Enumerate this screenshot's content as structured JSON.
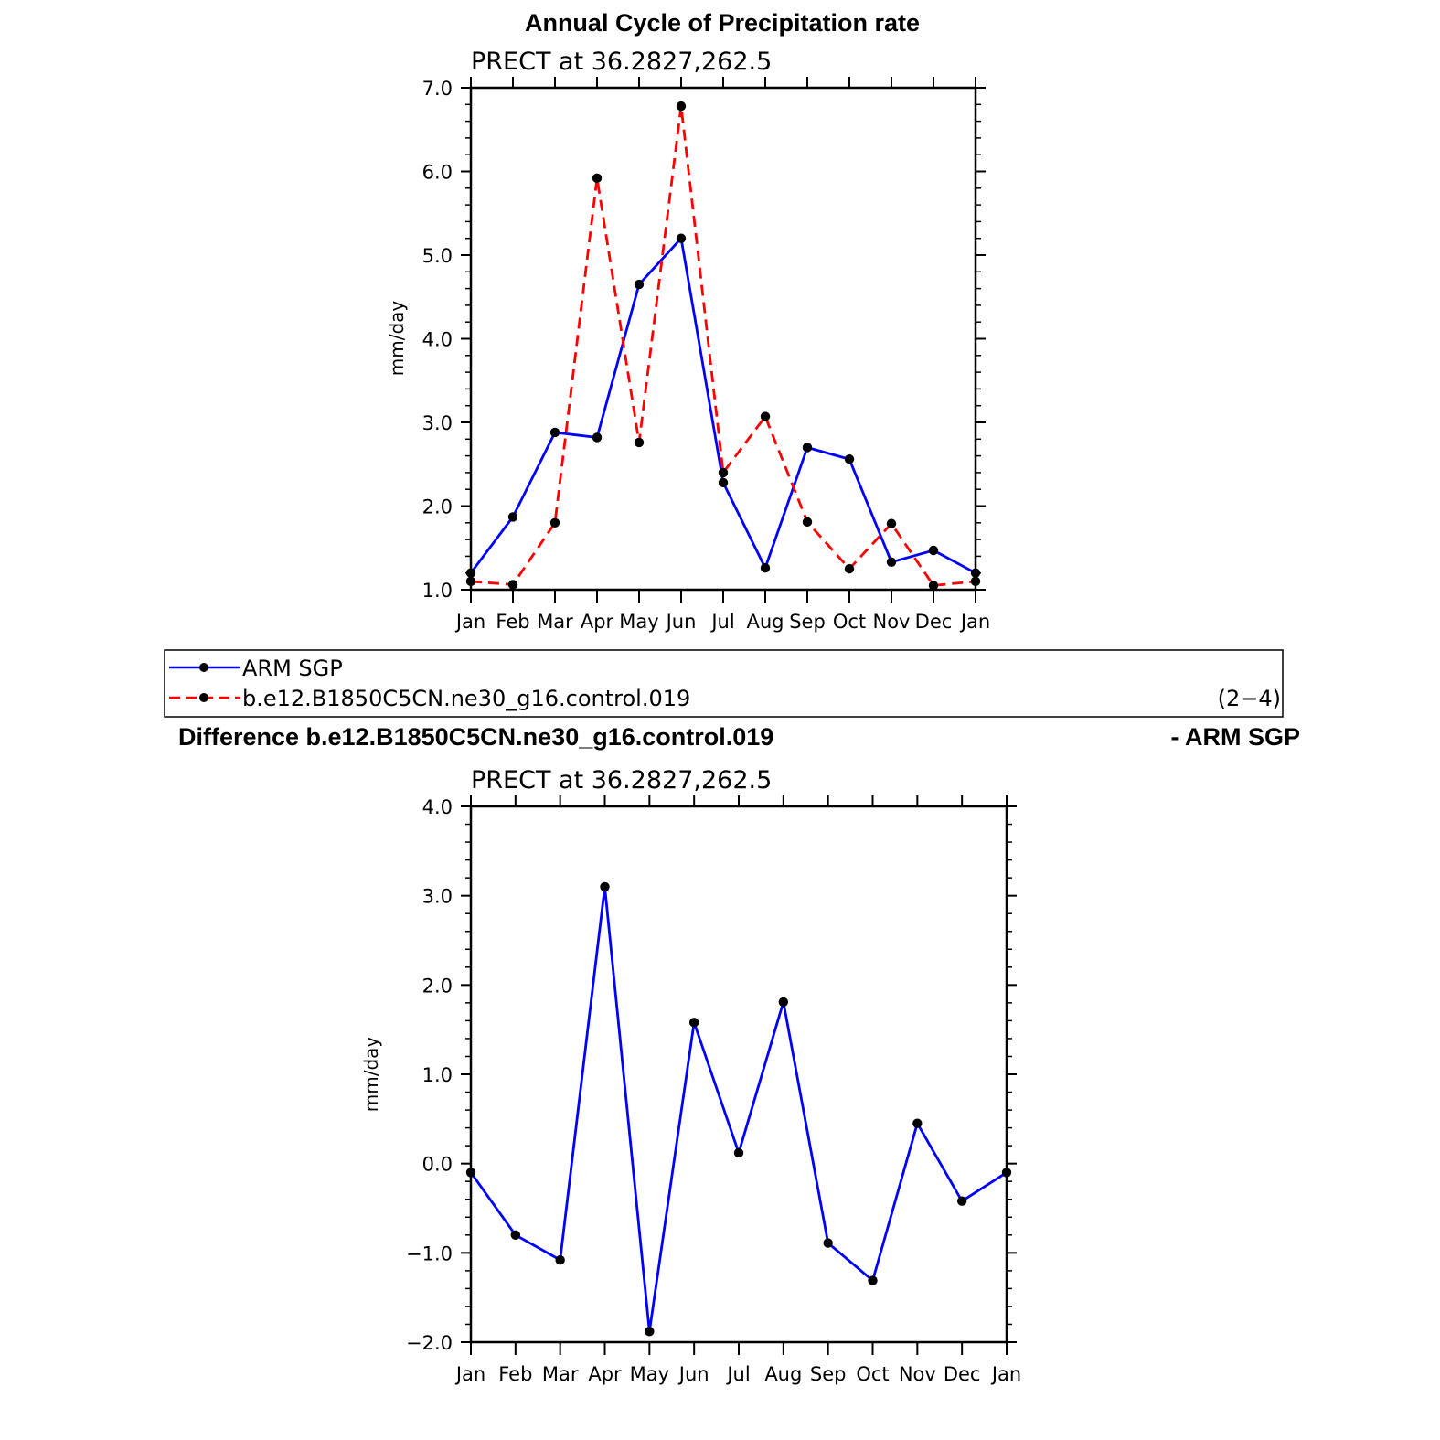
{
  "colors": {
    "obs": "#0000ff",
    "model": "#ff0000",
    "marker": "#000000",
    "frame": "#000000"
  },
  "legend": {
    "entries": [
      {
        "label": "ARM  SGP",
        "color": "#0000ff",
        "dash": "solid"
      },
      {
        "label": "b.e12.B1850C5CN.ne30_g16.control.019",
        "color": "#ff0000",
        "dash": "dashed"
      }
    ],
    "panel_tag": "(2−4)"
  },
  "chart_data": [
    {
      "type": "line",
      "title": "Annual Cycle of Precipitation rate",
      "subtitle": "PRECT  at  36.2827,262.5",
      "xlabel": "",
      "ylabel": "mm/day",
      "categories": [
        "Jan",
        "Feb",
        "Mar",
        "Apr",
        "May",
        "Jun",
        "Jul",
        "Aug",
        "Sep",
        "Oct",
        "Nov",
        "Dec",
        "Jan"
      ],
      "ylim": [
        1.0,
        7.0
      ],
      "yticks": [
        "1.0",
        "2.0",
        "3.0",
        "4.0",
        "5.0",
        "6.0",
        "7.0"
      ],
      "grid": false,
      "series": [
        {
          "name": "ARM  SGP",
          "color": "#0000ff",
          "dash": "solid",
          "values": [
            1.2,
            1.87,
            2.88,
            2.82,
            4.65,
            5.2,
            2.28,
            1.26,
            2.7,
            2.56,
            1.33,
            1.47,
            1.2
          ]
        },
        {
          "name": "b.e12.B1850C5CN.ne30_g16.control.019",
          "color": "#ff0000",
          "dash": "dashed",
          "values": [
            1.1,
            1.06,
            1.8,
            5.92,
            2.76,
            6.78,
            2.4,
            3.07,
            1.81,
            1.25,
            1.79,
            1.05,
            1.1
          ]
        }
      ]
    },
    {
      "type": "line",
      "title": "Difference b.e12.B1850C5CN.ne30_g16.control.019",
      "title_right": "- ARM SGP",
      "subtitle": "PRECT  at  36.2827,262.5",
      "xlabel": "",
      "ylabel": "mm/day",
      "categories": [
        "Jan",
        "Feb",
        "Mar",
        "Apr",
        "May",
        "Jun",
        "Jul",
        "Aug",
        "Sep",
        "Oct",
        "Nov",
        "Dec",
        "Jan"
      ],
      "ylim": [
        -2.0,
        4.0
      ],
      "yticks": [
        "−2.0",
        "−1.0",
        "0.0",
        "1.0",
        "2.0",
        "3.0",
        "4.0"
      ],
      "grid": false,
      "series": [
        {
          "color": "#0000ff",
          "dash": "solid",
          "values": [
            -0.1,
            -0.8,
            -1.08,
            3.1,
            -1.88,
            1.58,
            0.12,
            1.81,
            -0.89,
            -1.31,
            0.45,
            -0.42,
            -0.1
          ]
        }
      ]
    }
  ]
}
